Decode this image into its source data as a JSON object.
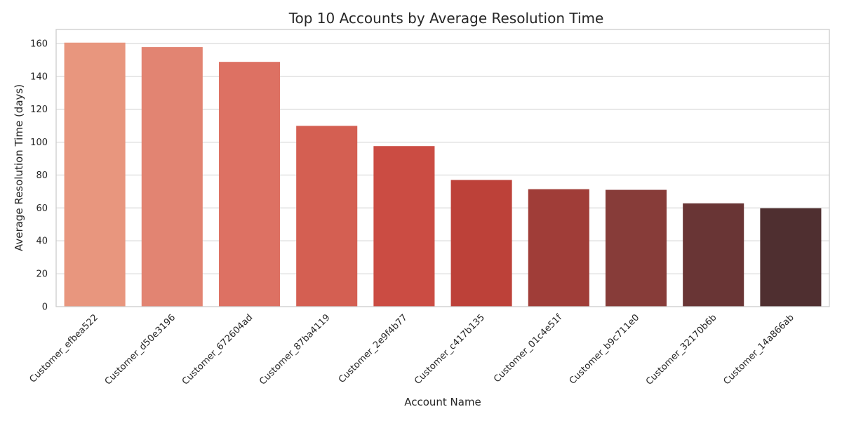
{
  "chart_data": {
    "type": "bar",
    "title": "Top 10 Accounts by Average Resolution Time",
    "xlabel": "Account Name",
    "ylabel": "Average Resolution Time (days)",
    "categories": [
      "Customer_efbea522",
      "Customer_d50e3196",
      "Customer_672604ad",
      "Customer_87ba4119",
      "Customer_2e9f4b77",
      "Customer_c417b135",
      "Customer_01c4e51f",
      "Customer_b9c711e0",
      "Customer_32170b6b",
      "Customer_14a866ab"
    ],
    "values": [
      160.5,
      157.8,
      148.8,
      109.9,
      97.6,
      77.0,
      71.4,
      71.0,
      62.8,
      59.8
    ],
    "colors": [
      "#e8967e",
      "#e28472",
      "#dd7163",
      "#d45f52",
      "#cb4c43",
      "#bd4139",
      "#a03d38",
      "#873c39",
      "#693535",
      "#4f2f30"
    ],
    "ylim": [
      0,
      168.5
    ],
    "yticks": [
      0,
      20,
      40,
      60,
      80,
      100,
      120,
      140,
      160
    ],
    "grid": true,
    "grid_axis": "y"
  }
}
